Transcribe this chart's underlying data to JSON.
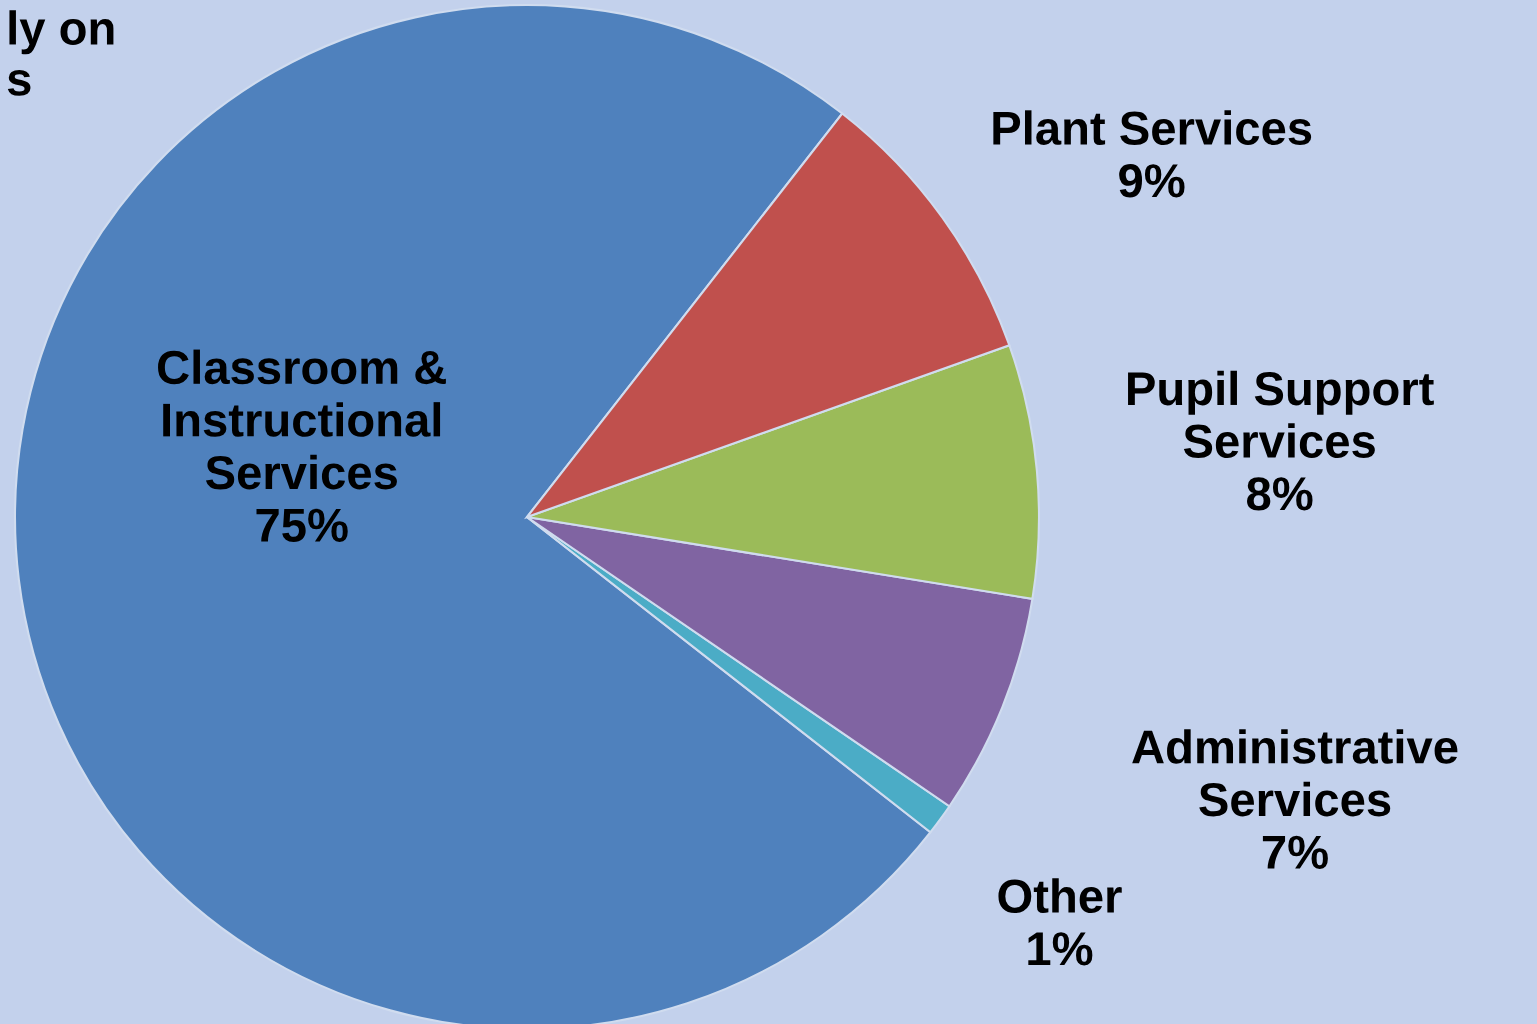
{
  "chart_data": {
    "type": "pie",
    "categories": [
      "Classroom &\nInstructional\nServices",
      "Other",
      "Administrative\nServices",
      "Pupil Support\nServices",
      "Plant Services"
    ],
    "values": [
      75,
      1,
      7,
      8,
      9
    ],
    "value_labels": [
      "75%",
      "1%",
      "7%",
      "8%",
      "9%"
    ],
    "colors": [
      "#4f81bd",
      "#4bacc6",
      "#8064a2",
      "#9bbb59",
      "#c0504d"
    ],
    "annotations": [
      "ly on\ns"
    ]
  }
}
